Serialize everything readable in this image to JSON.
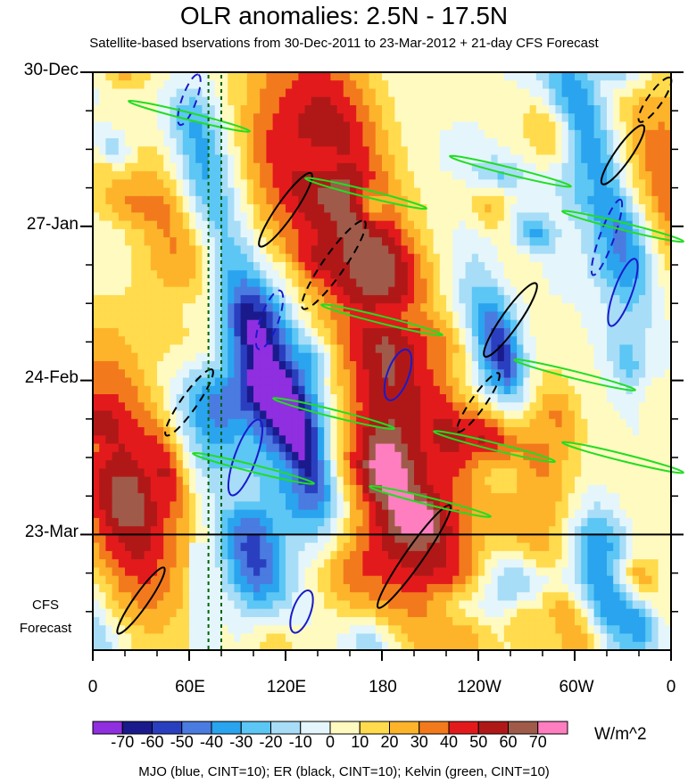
{
  "chart_data": {
    "type": "heatmap",
    "title": "OLR anomalies: 2.5N - 17.5N",
    "subtitle": "Satellite-based bservations from 30-Dec-2011 to 23-Mar-2012 + 21-day CFS Forecast",
    "x_ticks": [
      "0",
      "60E",
      "120E",
      "180",
      "120W",
      "60W",
      "0"
    ],
    "x_tick_longitudes": [
      0,
      60,
      120,
      180,
      240,
      300,
      360
    ],
    "y_ticks": [
      "30-Dec",
      "27-Jan",
      "24-Feb",
      "23-Mar"
    ],
    "y_tick_days": [
      0,
      28,
      56,
      84
    ],
    "y_total_days": 105,
    "forecast_label": [
      "CFS",
      "Forecast"
    ],
    "forecast_start_day": 84,
    "colorbar": {
      "levels": [
        "-70",
        "-60",
        "-50",
        "-40",
        "-30",
        "-20",
        "-10",
        "0",
        "10",
        "20",
        "30",
        "40",
        "50",
        "60",
        "70"
      ],
      "colors": [
        "#8f2fe0",
        "#1a1a8c",
        "#2a3fbf",
        "#4a7be0",
        "#2aa4ee",
        "#5cc6f5",
        "#a8ddf7",
        "#e4f6fb",
        "#fffac0",
        "#ffdb4d",
        "#fdb42b",
        "#f27a1c",
        "#e31a1c",
        "#b01818",
        "#a05a4a",
        "#ff7ec0"
      ],
      "units": "W/m^2"
    },
    "contour_series": [
      {
        "name": "MJO",
        "color": "#1a1acc",
        "cint": 10
      },
      {
        "name": "ER",
        "color": "#000000",
        "cint": 10
      },
      {
        "name": "Kelvin",
        "color": "#22dd22",
        "cint": 10
      }
    ],
    "reference_lines": {
      "dashed_longitudes_deg": [
        72,
        80
      ],
      "color": "#006400"
    },
    "footer": "MJO (blue, CINT=10); ER (black, CINT=10); Kelvin (green, CINT=10)"
  }
}
